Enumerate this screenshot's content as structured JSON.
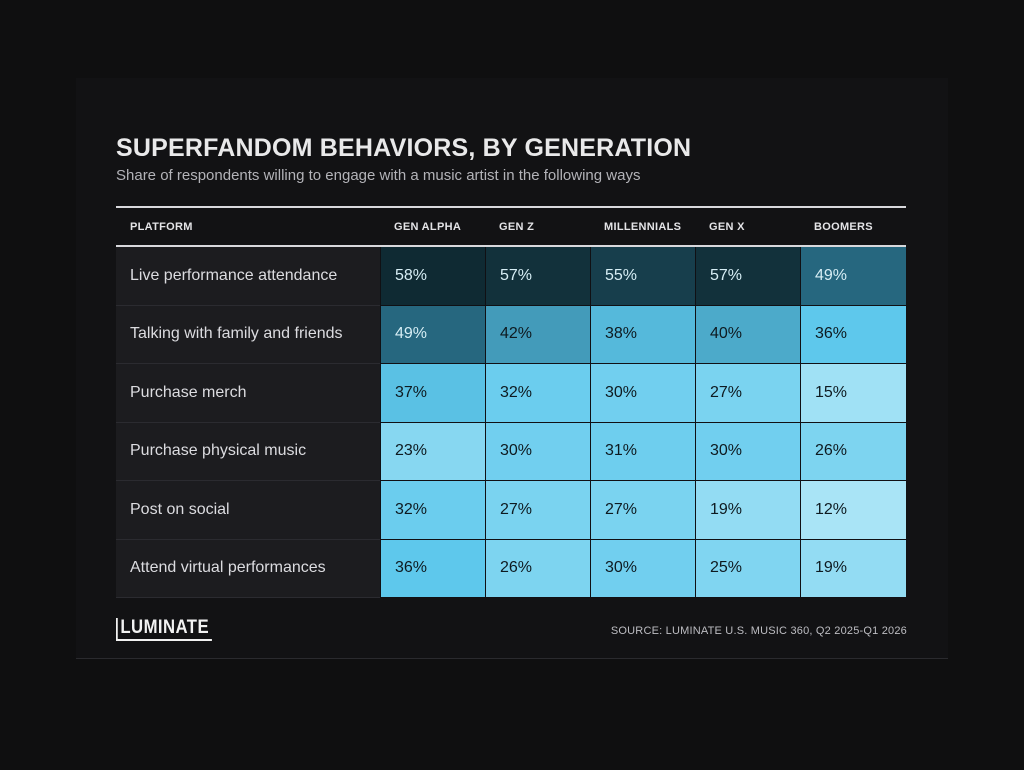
{
  "title": "SUPERFANDOM BEHAVIORS, BY GENERATION",
  "subtitle": "Share of respondents willing to engage with a music artist in the following ways",
  "headers": [
    "PLATFORM",
    "GEN ALPHA",
    "GEN Z",
    "MILLENNIALS",
    "GEN X",
    "BOOMERS"
  ],
  "rows": [
    {
      "label": "Live performance attendance",
      "cells": [
        "58%",
        "57%",
        "55%",
        "57%",
        "49%"
      ]
    },
    {
      "label": "Talking with family and friends",
      "cells": [
        "49%",
        "42%",
        "38%",
        "40%",
        "36%"
      ]
    },
    {
      "label": "Purchase merch",
      "cells": [
        "37%",
        "32%",
        "30%",
        "27%",
        "15%"
      ]
    },
    {
      "label": "Purchase physical music",
      "cells": [
        "23%",
        "30%",
        "31%",
        "30%",
        "26%"
      ]
    },
    {
      "label": "Post on social",
      "cells": [
        "32%",
        "27%",
        "27%",
        "19%",
        "12%"
      ]
    },
    {
      "label": "Attend virtual performances",
      "cells": [
        "36%",
        "26%",
        "30%",
        "25%",
        "19%"
      ]
    }
  ],
  "logo": "LUMINATE",
  "source": "SOURCE: LUMINATE U.S. MUSIC 360, Q2 2025-Q1 2026",
  "colors": {
    "background": "#0f0f10",
    "row_label_bg": "#1c1c1f",
    "scale_high": "#0f2a33",
    "scale_mid": "#5ec8ec",
    "scale_low": "#a9e4f6"
  },
  "chart_data": {
    "type": "heatmap",
    "title": "SUPERFANDOM BEHAVIORS, BY GENERATION",
    "subtitle": "Share of respondents willing to engage with a music artist in the following ways",
    "categories": [
      "Live performance attendance",
      "Talking with family and friends",
      "Purchase merch",
      "Purchase physical music",
      "Post on social",
      "Attend virtual performances"
    ],
    "series": [
      {
        "name": "GEN ALPHA",
        "values": [
          58,
          49,
          37,
          23,
          32,
          36
        ]
      },
      {
        "name": "GEN Z",
        "values": [
          57,
          42,
          32,
          30,
          27,
          26
        ]
      },
      {
        "name": "MILLENNIALS",
        "values": [
          55,
          38,
          30,
          31,
          27,
          30
        ]
      },
      {
        "name": "GEN X",
        "values": [
          57,
          40,
          27,
          30,
          19,
          25
        ]
      },
      {
        "name": "BOOMERS",
        "values": [
          49,
          36,
          15,
          26,
          12,
          19
        ]
      }
    ],
    "unit": "%"
  }
}
